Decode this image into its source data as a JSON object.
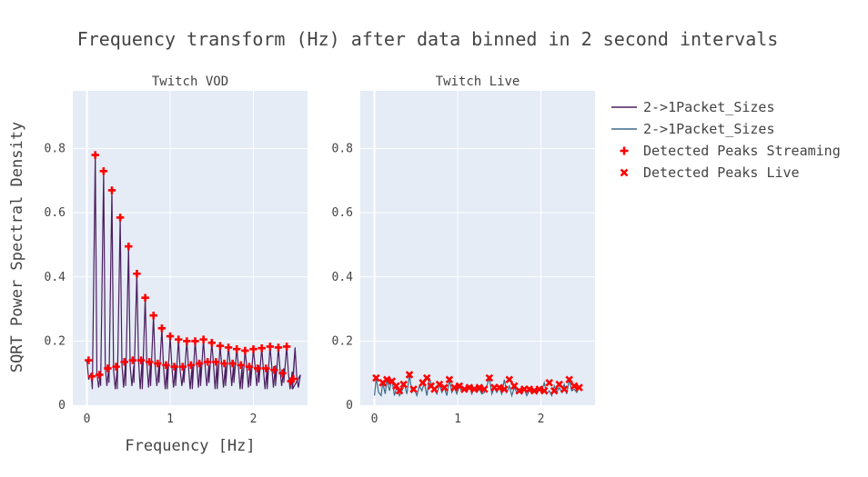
{
  "chart_data": {
    "type": "line",
    "title": "Frequency transform (Hz) after data binned in 2 second intervals",
    "xlabel": "Frequency [Hz]",
    "ylabel": "SQRT Power Spectral Density",
    "ylim": [
      0,
      0.98
    ],
    "grid": true,
    "legend_position": "right",
    "legend": [
      {
        "name": "2->1Packet_Sizes",
        "kind": "line",
        "color": "#4b1d5e"
      },
      {
        "name": "2->1Packet_Sizes",
        "kind": "line",
        "color": "#3f6a86"
      },
      {
        "name": "Detected Peaks Streaming",
        "kind": "cross",
        "color": "#ff0000"
      },
      {
        "name": "Detected Peaks Live",
        "kind": "x",
        "color": "#ff0000"
      }
    ],
    "panels": [
      {
        "title": "Twitch VOD",
        "xlim": [
          -0.17,
          2.65
        ],
        "xticks": [
          0,
          1,
          2
        ],
        "yticks": [
          0,
          0.2,
          0.4,
          0.6,
          0.8
        ],
        "ytick_labels": [
          "0",
          "0.2",
          "0.4",
          "0.6",
          "0.8"
        ],
        "line": {
          "name": "2->1Packet_Sizes",
          "color": "#4b1d5e",
          "peak_heights": [
            0.78,
            0.73,
            0.67,
            0.585,
            0.495,
            0.41,
            0.335,
            0.28,
            0.24,
            0.215,
            0.205,
            0.2,
            0.2,
            0.205,
            0.195,
            0.185,
            0.18,
            0.175,
            0.17,
            0.175,
            0.178,
            0.183,
            0.18,
            0.183,
            0.18
          ],
          "peak_x_start": 0.1,
          "peak_x_step": 0.1,
          "trough_value": 0.05,
          "mid_values": [
            0.1,
            0.12,
            0.11,
            0.13,
            0.12,
            0.14,
            0.13,
            0.12,
            0.12,
            0.12,
            0.11,
            0.12,
            0.13,
            0.12,
            0.13,
            0.12,
            0.13,
            0.12,
            0.12,
            0.12,
            0.11,
            0.12,
            0.11,
            0.1,
            0.09
          ],
          "x_end": 2.5,
          "y_end": 0.175
        },
        "peaks": {
          "name": "Detected Peaks Streaming",
          "marker": "cross",
          "x": [
            0.02,
            0.06,
            0.1,
            0.15,
            0.2,
            0.25,
            0.3,
            0.35,
            0.4,
            0.45,
            0.5,
            0.55,
            0.6,
            0.65,
            0.7,
            0.75,
            0.8,
            0.85,
            0.9,
            0.95,
            1.0,
            1.05,
            1.1,
            1.15,
            1.2,
            1.25,
            1.3,
            1.35,
            1.4,
            1.45,
            1.5,
            1.55,
            1.6,
            1.65,
            1.7,
            1.75,
            1.8,
            1.85,
            1.9,
            1.95,
            2.0,
            2.05,
            2.1,
            2.15,
            2.2,
            2.25,
            2.3,
            2.35,
            2.4,
            2.45,
            2.48
          ],
          "y": [
            0.14,
            0.09,
            0.78,
            0.095,
            0.73,
            0.115,
            0.67,
            0.12,
            0.585,
            0.135,
            0.495,
            0.14,
            0.41,
            0.14,
            0.335,
            0.135,
            0.28,
            0.13,
            0.24,
            0.125,
            0.215,
            0.12,
            0.205,
            0.12,
            0.2,
            0.125,
            0.2,
            0.13,
            0.205,
            0.135,
            0.195,
            0.135,
            0.185,
            0.13,
            0.18,
            0.13,
            0.175,
            0.125,
            0.17,
            0.12,
            0.175,
            0.115,
            0.178,
            0.115,
            0.183,
            0.11,
            0.18,
            0.1,
            0.183,
            0.075,
            0.082
          ]
        }
      },
      {
        "title": "Twitch Live",
        "xlim": [
          -0.17,
          2.65
        ],
        "xticks": [
          0,
          1,
          2
        ],
        "yticks": [
          0,
          0.2,
          0.4,
          0.6,
          0.8
        ],
        "ytick_labels": [
          "0",
          "0.2",
          "0.4",
          "0.6",
          "0.8"
        ],
        "line": {
          "name": "2->1Packet_Sizes",
          "color": "#3f6a86",
          "x": [
            0.0,
            0.02,
            0.05,
            0.08,
            0.1,
            0.13,
            0.15,
            0.18,
            0.21,
            0.24,
            0.27,
            0.3,
            0.33,
            0.36,
            0.39,
            0.42,
            0.45,
            0.48,
            0.51,
            0.54,
            0.57,
            0.6,
            0.63,
            0.66,
            0.69,
            0.72,
            0.75,
            0.78,
            0.81,
            0.84,
            0.87,
            0.9,
            0.93,
            0.96,
            0.99,
            1.02,
            1.05,
            1.08,
            1.11,
            1.14,
            1.17,
            1.2,
            1.23,
            1.26,
            1.29,
            1.32,
            1.35,
            1.38,
            1.41,
            1.44,
            1.47,
            1.5,
            1.53,
            1.56,
            1.59,
            1.62,
            1.65,
            1.68,
            1.71,
            1.74,
            1.77,
            1.8,
            1.83,
            1.86,
            1.89,
            1.92,
            1.95,
            1.98,
            2.01,
            2.04,
            2.07,
            2.1,
            2.13,
            2.16,
            2.19,
            2.22,
            2.25,
            2.28,
            2.31,
            2.34,
            2.37,
            2.4,
            2.43,
            2.46,
            2.49
          ],
          "y": [
            0.03,
            0.085,
            0.04,
            0.03,
            0.07,
            0.035,
            0.08,
            0.045,
            0.08,
            0.03,
            0.06,
            0.03,
            0.045,
            0.065,
            0.035,
            0.095,
            0.04,
            0.05,
            0.03,
            0.06,
            0.045,
            0.07,
            0.03,
            0.085,
            0.06,
            0.05,
            0.035,
            0.065,
            0.04,
            0.055,
            0.03,
            0.08,
            0.04,
            0.055,
            0.035,
            0.06,
            0.04,
            0.05,
            0.045,
            0.06,
            0.035,
            0.055,
            0.04,
            0.05,
            0.035,
            0.04,
            0.06,
            0.085,
            0.035,
            0.055,
            0.04,
            0.055,
            0.035,
            0.08,
            0.04,
            0.06,
            0.03,
            0.055,
            0.04,
            0.05,
            0.035,
            0.05,
            0.03,
            0.045,
            0.04,
            0.05,
            0.035,
            0.05,
            0.045,
            0.07,
            0.035,
            0.045,
            0.03,
            0.06,
            0.04,
            0.055,
            0.04,
            0.065,
            0.035,
            0.08,
            0.045,
            0.05,
            0.04,
            0.055,
            0.045
          ]
        },
        "peaks": {
          "name": "Detected Peaks Live",
          "marker": "x",
          "x": [
            0.02,
            0.1,
            0.15,
            0.21,
            0.26,
            0.3,
            0.35,
            0.42,
            0.47,
            0.58,
            0.63,
            0.68,
            0.72,
            0.78,
            0.84,
            0.9,
            0.96,
            1.02,
            1.08,
            1.14,
            1.2,
            1.26,
            1.32,
            1.38,
            1.44,
            1.5,
            1.56,
            1.62,
            1.68,
            1.74,
            1.8,
            1.86,
            1.92,
            1.98,
            2.04,
            2.1,
            2.16,
            2.22,
            2.28,
            2.34,
            2.4,
            2.46
          ],
          "y": [
            0.085,
            0.07,
            0.08,
            0.075,
            0.06,
            0.045,
            0.065,
            0.095,
            0.05,
            0.07,
            0.085,
            0.06,
            0.05,
            0.065,
            0.055,
            0.08,
            0.055,
            0.06,
            0.05,
            0.055,
            0.05,
            0.055,
            0.05,
            0.085,
            0.055,
            0.055,
            0.05,
            0.08,
            0.06,
            0.045,
            0.05,
            0.05,
            0.045,
            0.05,
            0.045,
            0.07,
            0.045,
            0.065,
            0.05,
            0.08,
            0.06,
            0.055
          ]
        }
      }
    ]
  }
}
